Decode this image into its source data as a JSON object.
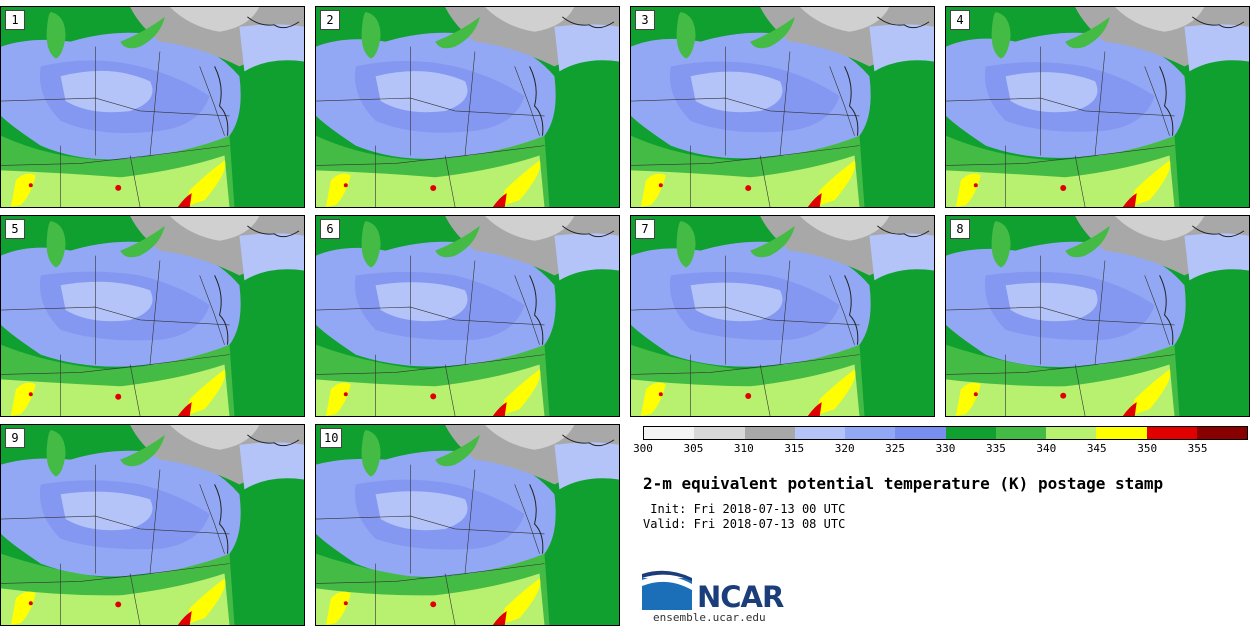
{
  "stamps": [
    {
      "label": "1"
    },
    {
      "label": "2"
    },
    {
      "label": "3"
    },
    {
      "label": "4"
    },
    {
      "label": "5"
    },
    {
      "label": "6"
    },
    {
      "label": "7"
    },
    {
      "label": "8"
    },
    {
      "label": "9"
    },
    {
      "label": "10"
    }
  ],
  "colorbar": {
    "ticks": [
      "300",
      "305",
      "310",
      "315",
      "320",
      "325",
      "330",
      "335",
      "340",
      "345",
      "350",
      "355"
    ],
    "colors": [
      "#f4f4f4",
      "#d8d8d8",
      "#a8a8a8",
      "#b4c4f8",
      "#93a8f4",
      "#7a8ef0",
      "#10a030",
      "#44bb44",
      "#b8f070",
      "#ffff00",
      "#e00000",
      "#880000"
    ]
  },
  "title": "2-m equivalent potential temperature (K) postage stamp",
  "init": " Init: Fri 2018-07-13 00 UTC",
  "valid": "Valid: Fri 2018-07-13 08 UTC",
  "logo": {
    "text": "NCAR",
    "site": "ensemble.ucar.edu"
  },
  "map_colors": {
    "gray_light": "#d0d0d0",
    "gray": "#a8a8a8",
    "blue_light": "#b4c4f8",
    "blue": "#93a8f4",
    "blue_dark": "#7a8ef0",
    "green_dark": "#10a030",
    "green": "#44bb44",
    "green_light": "#b8f070",
    "yellow": "#ffff00",
    "red": "#e00000",
    "ocean": "#10a030"
  }
}
